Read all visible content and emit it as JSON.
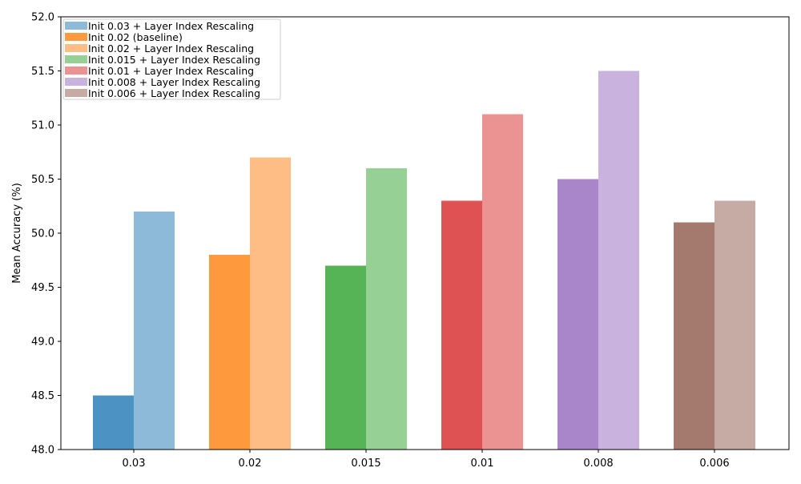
{
  "chart_data": {
    "type": "bar",
    "title": "",
    "xlabel": "",
    "ylabel": "Mean Accuracy (%)",
    "ylim": [
      48.0,
      52.0
    ],
    "yticks": [
      "48.0",
      "48.5",
      "49.0",
      "49.5",
      "50.0",
      "50.5",
      "51.0",
      "51.5",
      "52.0"
    ],
    "categories": [
      "0.03",
      "0.02",
      "0.015",
      "0.01",
      "0.008",
      "0.006"
    ],
    "grid": false,
    "legend_position": "top-left",
    "groups": [
      {
        "category": "0.03",
        "left": {
          "value": 48.5,
          "color": "#4c93c3"
        },
        "right": {
          "value": 50.2,
          "color": "#8ebad9"
        }
      },
      {
        "category": "0.02",
        "left": {
          "value": 49.8,
          "color": "#ff993e"
        },
        "right": {
          "value": 50.7,
          "color": "#ffbd86"
        }
      },
      {
        "category": "0.015",
        "left": {
          "value": 49.7,
          "color": "#56b356"
        },
        "right": {
          "value": 50.6,
          "color": "#97d095"
        }
      },
      {
        "category": "0.01",
        "left": {
          "value": 50.3,
          "color": "#de5253"
        },
        "right": {
          "value": 51.1,
          "color": "#eb9293"
        }
      },
      {
        "category": "0.008",
        "left": {
          "value": 50.5,
          "color": "#a886c9"
        },
        "right": {
          "value": 51.5,
          "color": "#c9b2dd"
        }
      },
      {
        "category": "0.006",
        "left": {
          "value": 50.1,
          "color": "#a47a6f"
        },
        "right": {
          "value": 50.3,
          "color": "#c5aba4"
        }
      }
    ],
    "legend": [
      {
        "label": "Init 0.03 + Layer Index Rescaling",
        "color": "#8ebad9"
      },
      {
        "label": "Init 0.02 (baseline)",
        "color": "#ff993e"
      },
      {
        "label": "Init 0.02 + Layer Index Rescaling",
        "color": "#ffbd86"
      },
      {
        "label": "Init 0.015 + Layer Index Rescaling",
        "color": "#97d095"
      },
      {
        "label": "Init 0.01 + Layer Index Rescaling",
        "color": "#eb9293"
      },
      {
        "label": "Init 0.008 + Layer Index Rescaling",
        "color": "#c9b2dd"
      },
      {
        "label": "Init 0.006 + Layer Index Rescaling",
        "color": "#c5aba4"
      }
    ]
  }
}
